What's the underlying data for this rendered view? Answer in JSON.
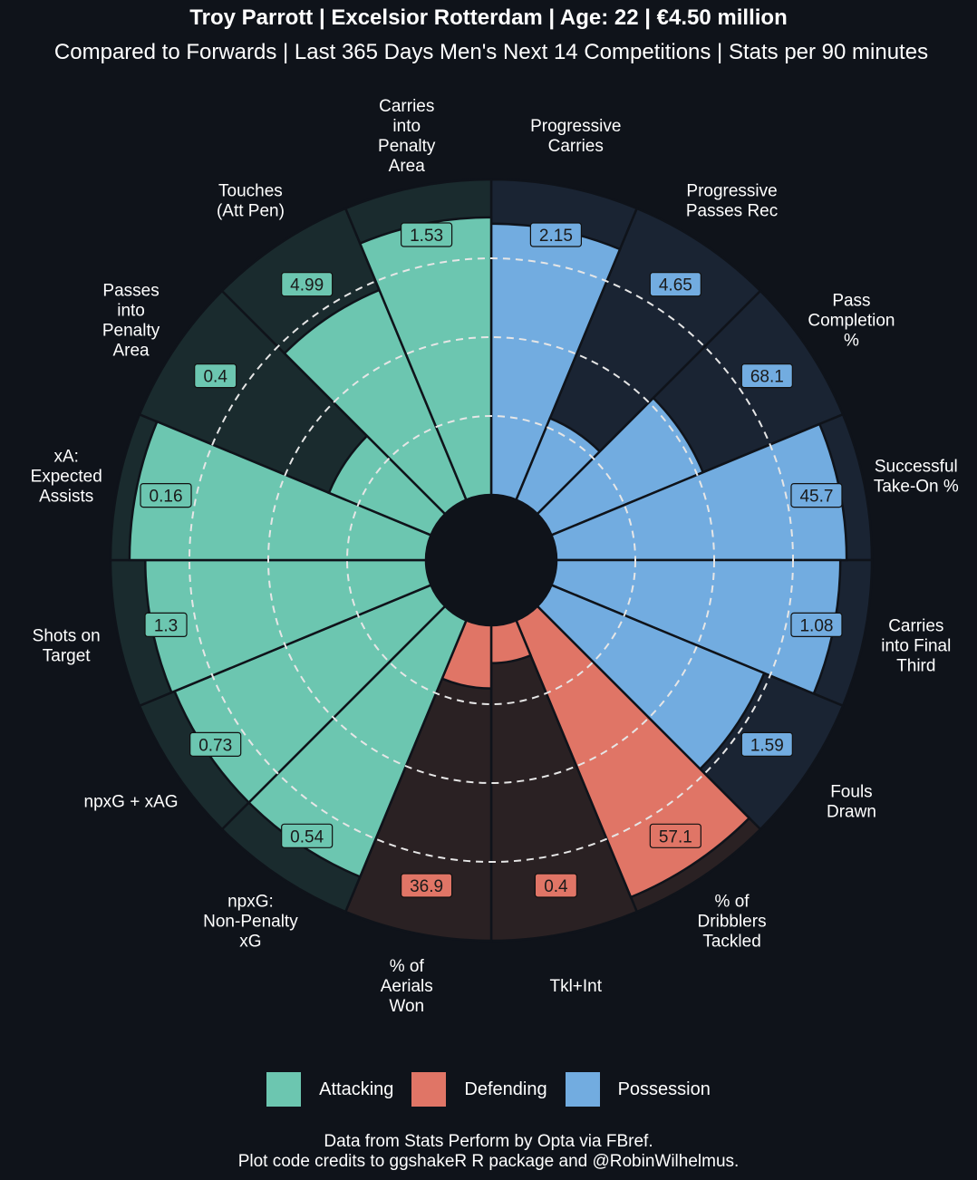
{
  "title": "Troy Parrott | Excelsior Rotterdam | Age: 22 | €4.50 million",
  "subtitle": "Compared to Forwards | Last 365 Days Men's Next 14 Competitions | Stats per 90 minutes",
  "caption": {
    "line1": "Data from Stats Perform by Opta via FBref.",
    "line2": "Plot code credits to ggshakeR R package and @RobinWilhelmus."
  },
  "colors": {
    "background": "#0f131a",
    "Attacking": "#6cc6b0",
    "Defending": "#e07566",
    "Possession": "#72ace0",
    "bg_Attacking": "#1a2b2e",
    "bg_Defending": "#2a2123",
    "bg_Possession": "#1a2433"
  },
  "legend": [
    {
      "label": "Attacking",
      "color": "#6cc6b0"
    },
    {
      "label": "Defending",
      "color": "#e07566"
    },
    {
      "label": "Possession",
      "color": "#72ace0"
    }
  ],
  "chart_data": {
    "type": "polar-bar",
    "value_type": "percentile",
    "ylim": [
      0,
      100
    ],
    "grid": "dashed rings at 25, 50, 75",
    "legend_position": "bottom",
    "metrics": [
      {
        "label": "Progressive\nCarries",
        "value": "2.15",
        "percentile": 86,
        "group": "Possession"
      },
      {
        "label": "Progressive\nPasses Rec",
        "value": "4.65",
        "percentile": 28,
        "group": "Possession"
      },
      {
        "label": "Pass\nCompletion\n%",
        "value": "68.1",
        "percentile": 52,
        "group": "Possession"
      },
      {
        "label": "Successful\nTake-On %",
        "value": "45.7",
        "percentile": 92,
        "group": "Possession"
      },
      {
        "label": "Carries\ninto Final\nThird",
        "value": "1.08",
        "percentile": 90,
        "group": "Possession"
      },
      {
        "label": "Fouls\nDrawn",
        "value": "1.59",
        "percentile": 73,
        "group": "Possession"
      },
      {
        "label": "% of\nDribblers\nTackled",
        "value": "57.1",
        "percentile": 95,
        "group": "Defending"
      },
      {
        "label": "Tkl+Int",
        "value": "0.4",
        "percentile": 12,
        "group": "Defending"
      },
      {
        "label": "% of\nAerials\nWon",
        "value": "36.9",
        "percentile": 20,
        "group": "Defending"
      },
      {
        "label": "npxG:\nNon-Penalty\nxG",
        "value": "0.54",
        "percentile": 88,
        "group": "Attacking"
      },
      {
        "label": "npxG + xAG",
        "value": "0.73",
        "percentile": 88,
        "group": "Attacking"
      },
      {
        "label": "Shots on\nTarget",
        "value": "1.3",
        "percentile": 89,
        "group": "Attacking"
      },
      {
        "label": "xA:\nExpected\nAssists",
        "value": "0.16",
        "percentile": 94,
        "group": "Attacking"
      },
      {
        "label": "Passes\ninto\nPenalty\nArea",
        "value": "0.4",
        "percentile": 35,
        "group": "Attacking"
      },
      {
        "label": "Touches\n(Att Pen)",
        "value": "4.99",
        "percentile": 72,
        "group": "Attacking"
      },
      {
        "label": "Carries\ninto\nPenalty\nArea",
        "value": "1.53",
        "percentile": 88,
        "group": "Attacking"
      }
    ]
  }
}
